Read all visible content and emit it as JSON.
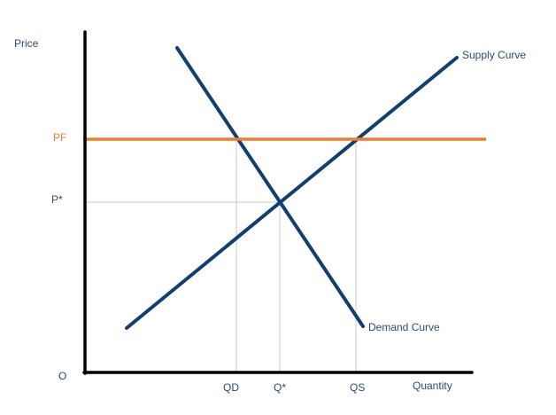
{
  "axes": {
    "y_label": "Price",
    "x_label": "Quantity",
    "origin_label": "O"
  },
  "price_labels": {
    "pf": "PF",
    "p_star": "P*"
  },
  "quantity_labels": {
    "qd": "QD",
    "q_star": "Q*",
    "qs": "QS"
  },
  "curves": {
    "supply": "Supply Curve",
    "demand": "Demand Curve"
  },
  "colors": {
    "curve": "#123f6e",
    "price_floor": "#ed7d31",
    "axis": "#000000",
    "guide": "#c8c8c8",
    "label": "#2e4a73"
  }
}
